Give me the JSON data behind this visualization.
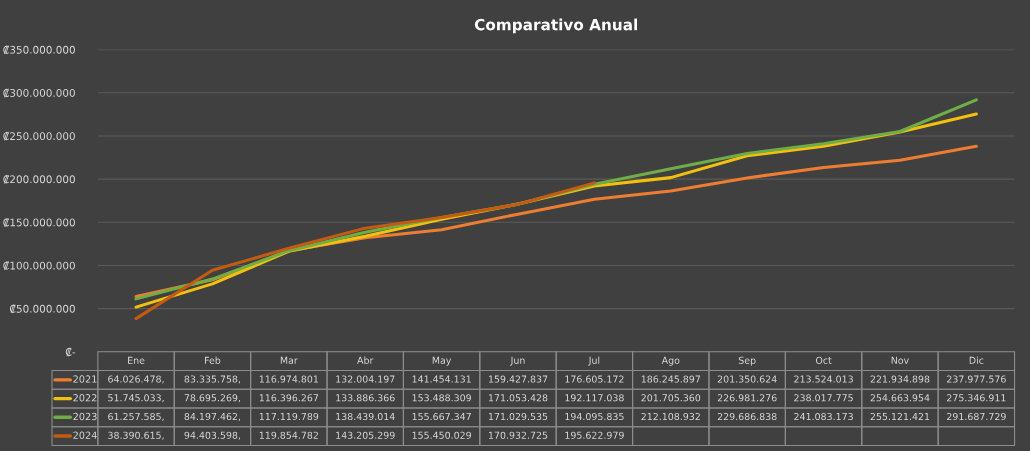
{
  "chart_data": {
    "type": "line",
    "title": "Comparativo Anual",
    "categories": [
      "Ene",
      "Feb",
      "Mar",
      "Abr",
      "May",
      "Jun",
      "Jul",
      "Ago",
      "Sep",
      "Oct",
      "Nov",
      "Dic"
    ],
    "series": [
      {
        "name": "2021",
        "color": "#ed7d31",
        "values": [
          64026478,
          83335758,
          116974801,
          132004197,
          141454131,
          159427837,
          176605172,
          186245897,
          201350624,
          213524013,
          221934898,
          237977576
        ],
        "value_labels": [
          "64.026.478,",
          "83.335.758,",
          "116.974.801",
          "132.004.197",
          "141.454.131",
          "159.427.837",
          "176.605.172",
          "186.245.897",
          "201.350.624",
          "213.524.013",
          "221.934.898",
          "237.977.576"
        ]
      },
      {
        "name": "2022",
        "color": "#f2c00f",
        "values": [
          51745033,
          78695269,
          116396267,
          133886366,
          153488309,
          171053428,
          192117038,
          201705360,
          226981276,
          238017775,
          254663954,
          275346911
        ],
        "value_labels": [
          "51.745.033,",
          "78.695.269,",
          "116.396.267",
          "133.886.366",
          "153.488.309",
          "171.053.428",
          "192.117.038",
          "201.705.360",
          "226.981.276",
          "238.017.775",
          "254.663.954",
          "275.346.911"
        ]
      },
      {
        "name": "2023",
        "color": "#70ad47",
        "values": [
          61257585,
          84197462,
          117119789,
          138439014,
          155667347,
          171029535,
          194095835,
          212108932,
          229686838,
          241083173,
          255121421,
          291687729
        ],
        "value_labels": [
          "61.257.585,",
          "84.197.462,",
          "117.119.789",
          "138.439.014",
          "155.667.347",
          "171.029.535",
          "194.095.835",
          "212.108.932",
          "229.686.838",
          "241.083.173",
          "255.121.421",
          "291.687.729"
        ]
      },
      {
        "name": "2024",
        "color": "#c55a11",
        "values": [
          38390615,
          94403598,
          119854782,
          143205299,
          155450029,
          170932725,
          195622979,
          null,
          null,
          null,
          null,
          null
        ],
        "value_labels": [
          "38.390.615,",
          "94.403.598,",
          "119.854.782",
          "143.205.299",
          "155.450.029",
          "170.932.725",
          "195.622.979",
          null,
          null,
          null,
          null,
          null
        ]
      }
    ],
    "ylim": [
      0,
      350000000
    ],
    "yticks": [
      {
        "value": 0,
        "label": "₡-"
      },
      {
        "value": 50000000,
        "label": "₡50.000.000"
      },
      {
        "value": 100000000,
        "label": "₡100.000.000"
      },
      {
        "value": 150000000,
        "label": "₡150.000.000"
      },
      {
        "value": 200000000,
        "label": "₡200.000.000"
      },
      {
        "value": 250000000,
        "label": "₡250.000.000"
      },
      {
        "value": 300000000,
        "label": "₡300.000.000"
      },
      {
        "value": 350000000,
        "label": "₡350.000.000"
      }
    ],
    "grid": "y",
    "legend": "bottom",
    "marker": "none",
    "line_style": "solid"
  }
}
